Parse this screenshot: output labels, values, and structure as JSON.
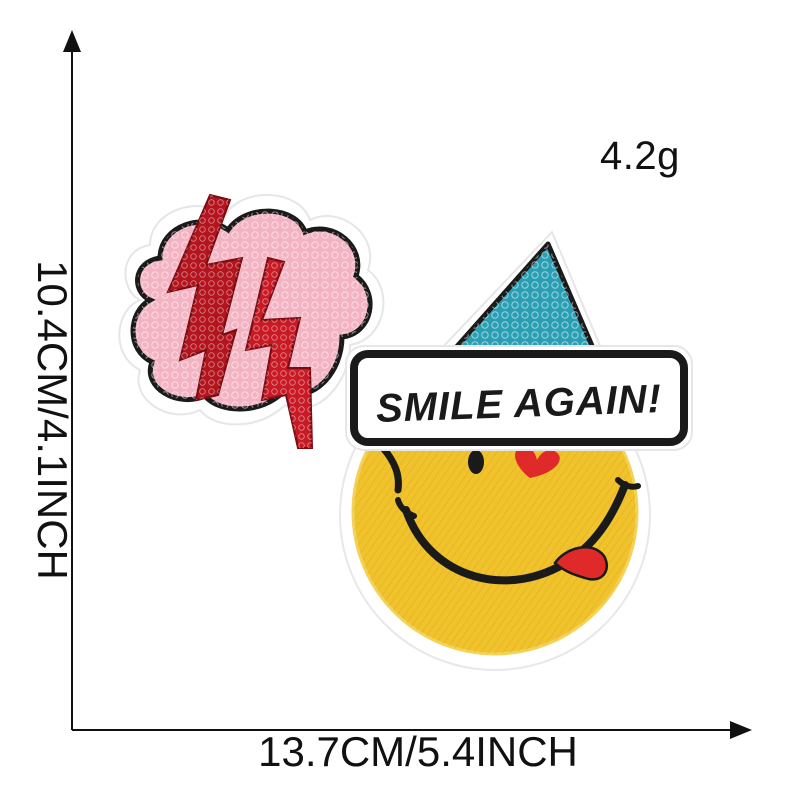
{
  "dimensions": {
    "weight": "4.2g",
    "width": "13.7CM/5.4INCH",
    "height": "10.4CM/4.1INCH"
  },
  "patch": {
    "banner_text": "SMILE AGAIN!",
    "colors": {
      "cloud_pink": "#f4b3c2",
      "lightning_red": "#b3141e",
      "hat_teal": "#2a9fb4",
      "face_yellow": "#f0c22c",
      "outline_black": "#1a1a1a",
      "heart_red": "#e02a2a",
      "border_white": "#ffffff"
    }
  }
}
